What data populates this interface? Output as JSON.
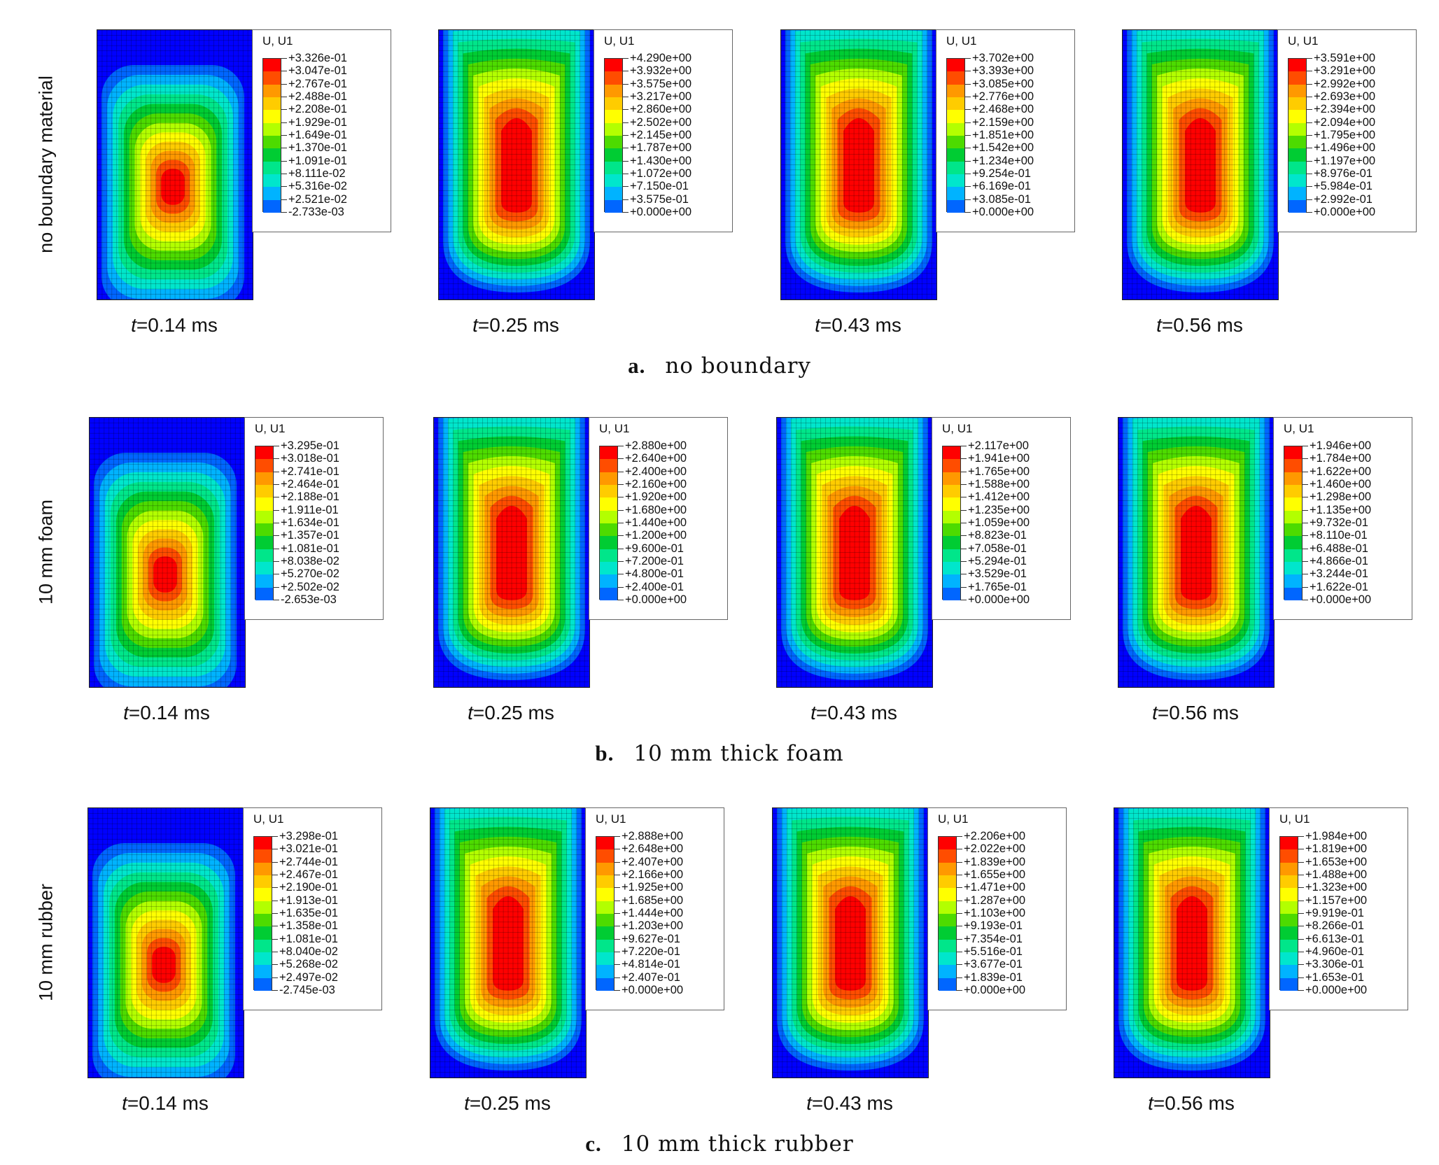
{
  "legend_title": "U, U1",
  "time_prefix": "t",
  "colors": [
    "#ff0000",
    "#ff4d00",
    "#ff9900",
    "#ffcc00",
    "#ffff00",
    "#b3ff00",
    "#4ddb00",
    "#00cc33",
    "#00e68a",
    "#00e6cc",
    "#00b3ff",
    "#0066ff",
    "#0000ff"
  ],
  "rows": [
    {
      "side_label": "no boundary material",
      "caption_letter": "a.",
      "caption_text": "no boundary",
      "panels": [
        {
          "time": "=0.14 ms",
          "levels": [
            "+3.326e-01",
            "+3.047e-01",
            "+2.767e-01",
            "+2.488e-01",
            "+2.208e-01",
            "+1.929e-01",
            "+1.649e-01",
            "+1.370e-01",
            "+1.091e-01",
            "+8.111e-02",
            "+5.316e-02",
            "+2.521e-02",
            "-2.733e-03"
          ]
        },
        {
          "time": "=0.25 ms",
          "levels": [
            "+4.290e+00",
            "+3.932e+00",
            "+3.575e+00",
            "+3.217e+00",
            "+2.860e+00",
            "+2.502e+00",
            "+2.145e+00",
            "+1.787e+00",
            "+1.430e+00",
            "+1.072e+00",
            "+7.150e-01",
            "+3.575e-01",
            "+0.000e+00"
          ]
        },
        {
          "time": "=0.43 ms",
          "levels": [
            "+3.702e+00",
            "+3.393e+00",
            "+3.085e+00",
            "+2.776e+00",
            "+2.468e+00",
            "+2.159e+00",
            "+1.851e+00",
            "+1.542e+00",
            "+1.234e+00",
            "+9.254e-01",
            "+6.169e-01",
            "+3.085e-01",
            "+0.000e+00"
          ]
        },
        {
          "time": "=0.56 ms",
          "levels": [
            "+3.591e+00",
            "+3.291e+00",
            "+2.992e+00",
            "+2.693e+00",
            "+2.394e+00",
            "+2.094e+00",
            "+1.795e+00",
            "+1.496e+00",
            "+1.197e+00",
            "+8.976e-01",
            "+5.984e-01",
            "+2.992e-01",
            "+0.000e+00"
          ]
        }
      ]
    },
    {
      "side_label": "10 mm foam",
      "caption_letter": "b.",
      "caption_text": "10 mm thick foam",
      "panels": [
        {
          "time": "=0.14 ms",
          "levels": [
            "+3.295e-01",
            "+3.018e-01",
            "+2.741e-01",
            "+2.464e-01",
            "+2.188e-01",
            "+1.911e-01",
            "+1.634e-01",
            "+1.357e-01",
            "+1.081e-01",
            "+8.038e-02",
            "+5.270e-02",
            "+2.502e-02",
            "-2.653e-03"
          ]
        },
        {
          "time": "=0.25 ms",
          "levels": [
            "+2.880e+00",
            "+2.640e+00",
            "+2.400e+00",
            "+2.160e+00",
            "+1.920e+00",
            "+1.680e+00",
            "+1.440e+00",
            "+1.200e+00",
            "+9.600e-01",
            "+7.200e-01",
            "+4.800e-01",
            "+2.400e-01",
            "+0.000e+00"
          ]
        },
        {
          "time": "=0.43 ms",
          "levels": [
            "+2.117e+00",
            "+1.941e+00",
            "+1.765e+00",
            "+1.588e+00",
            "+1.412e+00",
            "+1.235e+00",
            "+1.059e+00",
            "+8.823e-01",
            "+7.058e-01",
            "+5.294e-01",
            "+3.529e-01",
            "+1.765e-01",
            "+0.000e+00"
          ]
        },
        {
          "time": "=0.56 ms",
          "levels": [
            "+1.946e+00",
            "+1.784e+00",
            "+1.622e+00",
            "+1.460e+00",
            "+1.298e+00",
            "+1.135e+00",
            "+9.732e-01",
            "+8.110e-01",
            "+6.488e-01",
            "+4.866e-01",
            "+3.244e-01",
            "+1.622e-01",
            "+0.000e+00"
          ]
        }
      ]
    },
    {
      "side_label": "10 mm rubber",
      "caption_letter": "c.",
      "caption_text": "10 mm thick rubber",
      "panels": [
        {
          "time": "=0.14 ms",
          "levels": [
            "+3.298e-01",
            "+3.021e-01",
            "+2.744e-01",
            "+2.467e-01",
            "+2.190e-01",
            "+1.913e-01",
            "+1.635e-01",
            "+1.358e-01",
            "+1.081e-01",
            "+8.040e-02",
            "+5.268e-02",
            "+2.497e-02",
            "-2.745e-03"
          ]
        },
        {
          "time": "=0.25 ms",
          "levels": [
            "+2.888e+00",
            "+2.648e+00",
            "+2.407e+00",
            "+2.166e+00",
            "+1.925e+00",
            "+1.685e+00",
            "+1.444e+00",
            "+1.203e+00",
            "+9.627e-01",
            "+7.220e-01",
            "+4.814e-01",
            "+2.407e-01",
            "+0.000e+00"
          ]
        },
        {
          "time": "=0.43 ms",
          "levels": [
            "+2.206e+00",
            "+2.022e+00",
            "+1.839e+00",
            "+1.655e+00",
            "+1.471e+00",
            "+1.287e+00",
            "+1.103e+00",
            "+9.193e-01",
            "+7.354e-01",
            "+5.516e-01",
            "+3.677e-01",
            "+1.839e-01",
            "+0.000e+00"
          ]
        },
        {
          "time": "=0.56 ms",
          "levels": [
            "+1.984e+00",
            "+1.819e+00",
            "+1.653e+00",
            "+1.488e+00",
            "+1.323e+00",
            "+1.157e+00",
            "+9.919e-01",
            "+8.266e-01",
            "+6.613e-01",
            "+4.960e-01",
            "+3.306e-01",
            "+1.653e-01",
            "+0.000e+00"
          ]
        }
      ]
    }
  ]
}
